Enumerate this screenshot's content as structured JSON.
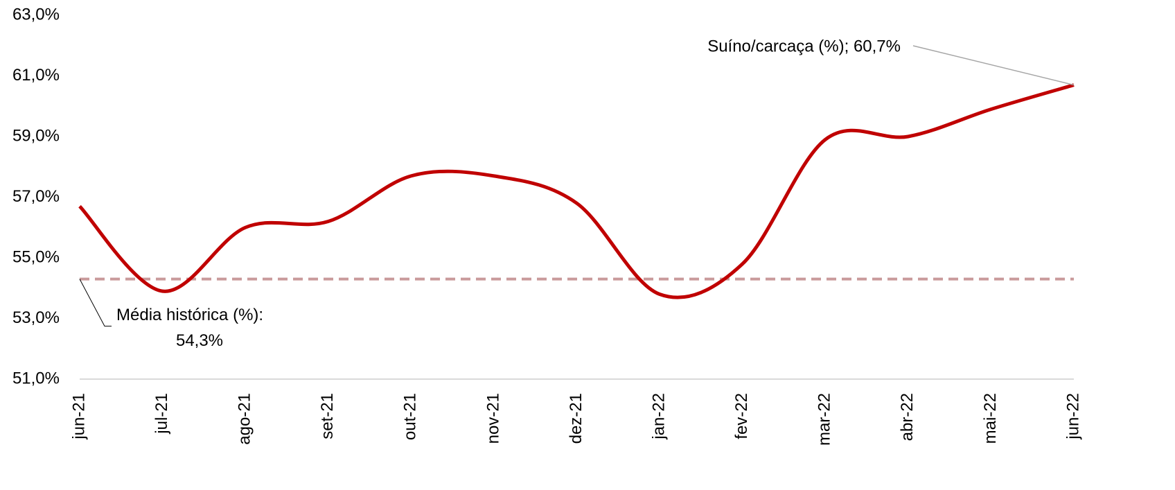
{
  "chart_data": {
    "type": "line",
    "categories": [
      "jun-21",
      "jul-21",
      "ago-21",
      "set-21",
      "out-21",
      "nov-21",
      "dez-21",
      "jan-22",
      "fev-22",
      "mar-22",
      "abr-22",
      "mai-22",
      "jun-22"
    ],
    "series": [
      {
        "color": "#c00000",
        "values": [
          56.7,
          53.9,
          56.0,
          56.2,
          57.7,
          57.7,
          56.8,
          53.8,
          54.8,
          58.9,
          59.0,
          59.9,
          60.7
        ]
      }
    ],
    "ylim": [
      51,
      63
    ],
    "yticks": [
      {
        "value": 51,
        "label": "51,0%"
      },
      {
        "value": 53,
        "label": "53,0%"
      },
      {
        "value": 55,
        "label": "55,0%"
      },
      {
        "value": 57,
        "label": "57,0%"
      },
      {
        "value": 59,
        "label": "59,0%"
      },
      {
        "value": 61,
        "label": "61,0%"
      },
      {
        "value": 63,
        "label": "63,0%"
      }
    ],
    "annotation": "Suíno/carcaça (%); 60,7%",
    "reference_line": {
      "value": 54.3,
      "label": "Média histórica (%):",
      "value_label": "54,3%",
      "color": "#c99a9b"
    }
  }
}
